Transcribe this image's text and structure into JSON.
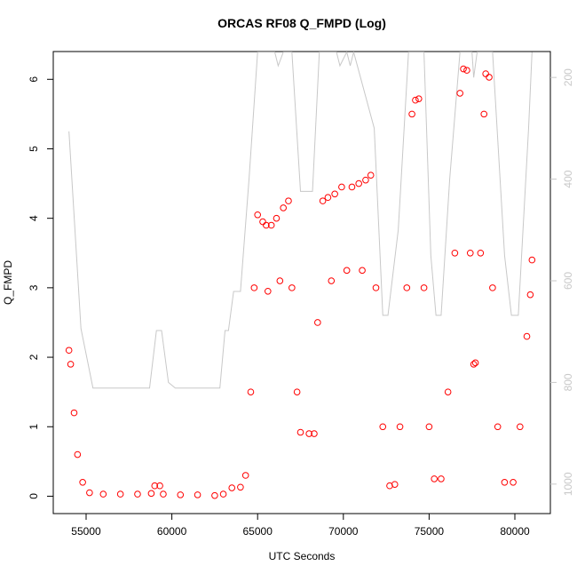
{
  "chart_data": {
    "type": "scatter",
    "title": "ORCAS RF08 Q_FMPD (Log)",
    "x_label": "UTC Seconds",
    "y_label": "Q_FMPD",
    "xlim": [
      53085,
      82070
    ],
    "ylim": [
      -0.25,
      6.4
    ],
    "y2lim": [
      1058,
      149
    ],
    "xticks": [
      55000,
      60000,
      65000,
      70000,
      75000,
      80000
    ],
    "yticks": [
      0,
      1,
      2,
      3,
      4,
      5,
      6
    ],
    "y2ticks": [
      200,
      400,
      600,
      800,
      1000
    ],
    "series": [
      {
        "style": "line",
        "axis": "y2",
        "color": "#c8c8c8",
        "x": [
          54000,
          54700,
          55400,
          58700,
          59100,
          59400,
          59800,
          60200,
          62800,
          63100,
          63300,
          63600,
          64000,
          64500,
          65000,
          66000,
          66200,
          66500,
          67000,
          67500,
          68200,
          68600,
          69600,
          69800,
          70200,
          70400,
          70600,
          71800,
          72300,
          72600,
          73200,
          73800,
          74700,
          75100,
          75400,
          75700,
          76200,
          76800,
          77500,
          77600,
          77800,
          78700,
          79400,
          79800,
          80200,
          80800,
          81000
        ],
        "values": [
          306,
          694,
          811,
          811,
          698,
          698,
          800,
          811,
          811,
          698,
          698,
          621,
          621,
          400,
          150,
          150,
          177,
          150,
          150,
          424,
          424,
          150,
          150,
          177,
          150,
          177,
          150,
          300,
          668,
          668,
          500,
          150,
          150,
          550,
          668,
          668,
          400,
          150,
          150,
          200,
          150,
          150,
          550,
          668,
          668,
          300,
          150
        ]
      },
      {
        "style": "points",
        "color": "#ff0000",
        "x": [
          54000,
          54100,
          54300,
          54500,
          54800,
          55200,
          56000,
          57000,
          58000,
          58800,
          59000,
          59300,
          59500,
          60500,
          61500,
          62500,
          63000,
          63500,
          64000,
          64300,
          64600,
          64800,
          65000,
          65300,
          65500,
          65600,
          65800,
          66100,
          66300,
          66500,
          66800,
          67000,
          67300,
          67500,
          68000,
          68300,
          68500,
          68800,
          69100,
          69300,
          69500,
          69900,
          70200,
          70500,
          70900,
          71100,
          71300,
          71600,
          71900,
          72300,
          72700,
          73000,
          73300,
          73700,
          74000,
          74200,
          74400,
          74700,
          75000,
          75300,
          75700,
          76100,
          76500,
          76800,
          77000,
          77200,
          77400,
          77600,
          77700,
          78000,
          78200,
          78300,
          78500,
          78700,
          79000,
          79400,
          79900,
          80300,
          80700,
          80900,
          81000
        ],
        "values": [
          2.1,
          1.9,
          1.2,
          0.6,
          0.2,
          0.05,
          0.03,
          0.03,
          0.03,
          0.04,
          0.15,
          0.15,
          0.03,
          0.02,
          0.02,
          0.01,
          0.03,
          0.12,
          0.13,
          0.3,
          1.5,
          3.0,
          4.05,
          3.95,
          3.9,
          2.95,
          3.9,
          4.0,
          3.1,
          4.15,
          4.25,
          3.0,
          1.5,
          0.92,
          0.9,
          0.9,
          2.5,
          4.25,
          4.3,
          3.1,
          4.35,
          4.45,
          3.25,
          4.45,
          4.5,
          3.25,
          4.55,
          4.62,
          3.0,
          1.0,
          0.15,
          0.17,
          1.0,
          3.0,
          5.5,
          5.7,
          5.72,
          3.0,
          1.0,
          0.25,
          0.25,
          1.5,
          3.5,
          5.8,
          6.15,
          6.13,
          3.5,
          1.9,
          1.92,
          3.5,
          5.5,
          6.08,
          6.03,
          3.0,
          1.0,
          0.2,
          0.2,
          1.0,
          2.3,
          2.9,
          3.4
        ]
      }
    ]
  }
}
